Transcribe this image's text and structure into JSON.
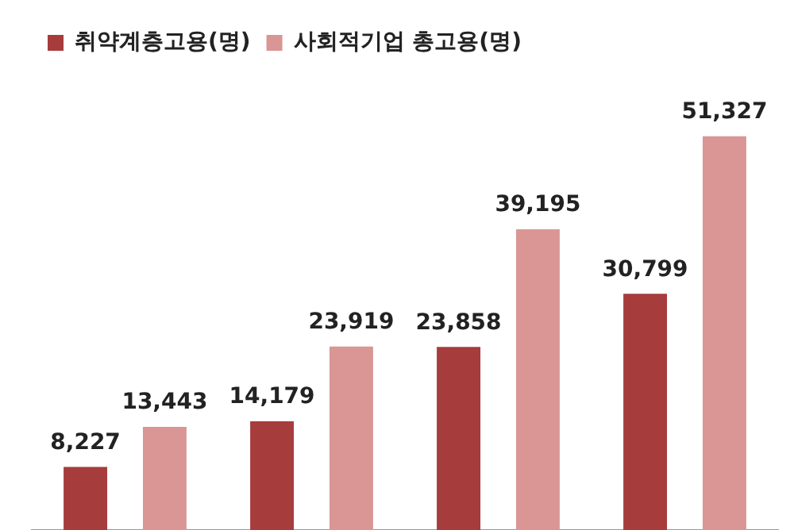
{
  "chart_data": {
    "type": "bar",
    "categories": [
      null,
      null,
      null,
      null
    ],
    "series": [
      {
        "name": "취약계층고용(명)",
        "color": "#a63c3c",
        "values": [
          8227,
          14179,
          23858,
          30799
        ],
        "value_labels": [
          "8,227",
          "14,179",
          "23,858",
          "30,799"
        ]
      },
      {
        "name": "사회적기업 총고용(명)",
        "color": "#d99694",
        "values": [
          13443,
          23919,
          39195,
          51327
        ],
        "value_labels": [
          "13,443",
          "23,919",
          "39,195",
          "51,327"
        ]
      }
    ],
    "legend": "top left",
    "grid": false
  }
}
